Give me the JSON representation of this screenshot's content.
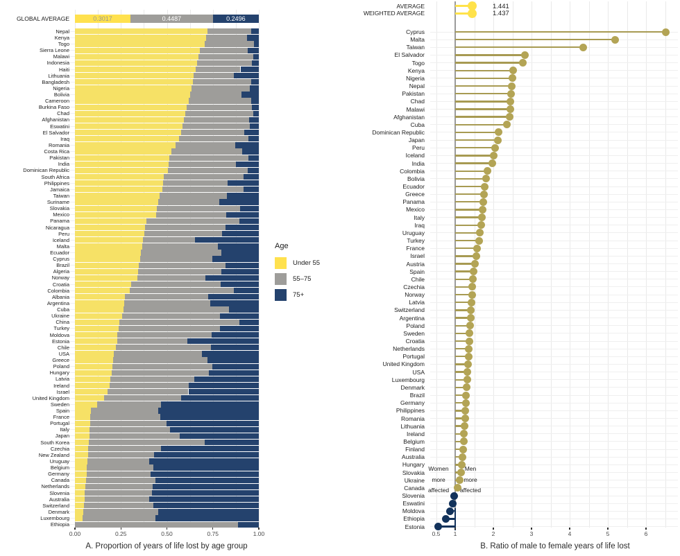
{
  "colors": {
    "under55_bar": "#f6e166",
    "global_under55_bar": "#ffe14e",
    "age5575_bar": "#9e9d9a",
    "age75_bar": "#24426d",
    "ratio_dot_men": "#b3a455",
    "ratio_stem_men": "#a79a52",
    "ratio_dot_women": "#12325b",
    "average_dot": "#ffe24a",
    "reference_line": "#9a9a9a",
    "gridline": "#e9e9e9",
    "row_gridline": "#efefef",
    "axis_text": "#4a4a4a",
    "text": "#1a1a1a",
    "seg_label_yellow_text": "#9a9a8e",
    "seg_label_text": "#ffffff"
  },
  "chart_data": [
    {
      "type": "bar",
      "orientation": "horizontal",
      "stacked": true,
      "title": "A.  Proportion of years of life lost by age group",
      "xlabel": "",
      "ylabel": "",
      "xlim": [
        0,
        1
      ],
      "x_ticks": [
        0,
        0.25,
        0.5,
        0.75,
        1.0
      ],
      "x_tick_labels": [
        "0.00",
        "0.25",
        "0.50",
        "0.75",
        "1.00"
      ],
      "grid": true,
      "legend": {
        "title": "Age",
        "position": "right-middle",
        "entries": [
          "Under 55",
          "55–75",
          "75+"
        ]
      },
      "global_average": {
        "label": "GLOBAL AVERAGE",
        "values": [
          0.3017,
          0.4487,
          0.2496
        ],
        "value_labels": [
          "0.3017",
          "0.4487",
          "0.2496"
        ]
      },
      "row_format": [
        "country",
        "under55",
        "55-75",
        "75plus"
      ],
      "rows": [
        [
          "Nepal",
          0.72,
          0.24,
          0.04
        ],
        [
          "Kenya",
          0.712,
          0.223,
          0.065
        ],
        [
          "Togo",
          0.705,
          0.27,
          0.025
        ],
        [
          "Sierra Leone",
          0.68,
          0.26,
          0.06
        ],
        [
          "Malawi",
          0.673,
          0.297,
          0.03
        ],
        [
          "Indonesia",
          0.664,
          0.298,
          0.038
        ],
        [
          "Haiti",
          0.655,
          0.245,
          0.1
        ],
        [
          "Lithuania",
          0.647,
          0.218,
          0.135
        ],
        [
          "Bangladesh",
          0.64,
          0.318,
          0.042
        ],
        [
          "Nigeria",
          0.633,
          0.319,
          0.048
        ],
        [
          "Bolivia",
          0.625,
          0.28,
          0.095
        ],
        [
          "Cameroon",
          0.617,
          0.341,
          0.042
        ],
        [
          "Burkina Faso",
          0.609,
          0.354,
          0.037
        ],
        [
          "Chad",
          0.601,
          0.367,
          0.032
        ],
        [
          "Afghanistan",
          0.593,
          0.355,
          0.052
        ],
        [
          "Eswatini",
          0.585,
          0.367,
          0.048
        ],
        [
          "El Salvador",
          0.577,
          0.345,
          0.078
        ],
        [
          "Iraq",
          0.565,
          0.377,
          0.058
        ],
        [
          "Romania",
          0.548,
          0.325,
          0.127
        ],
        [
          "Costa Rica",
          0.523,
          0.385,
          0.092
        ],
        [
          "Pakistan",
          0.513,
          0.431,
          0.056
        ],
        [
          "India",
          0.508,
          0.369,
          0.123
        ],
        [
          "Dominican Republic",
          0.504,
          0.434,
          0.062
        ],
        [
          "South Africa",
          0.482,
          0.436,
          0.082
        ],
        [
          "Philippines",
          0.478,
          0.352,
          0.17
        ],
        [
          "Jamaica",
          0.474,
          0.443,
          0.083
        ],
        [
          "Taiwan",
          0.462,
          0.366,
          0.172
        ],
        [
          "Suriname",
          0.452,
          0.334,
          0.214
        ],
        [
          "Slovakia",
          0.447,
          0.451,
          0.102
        ],
        [
          "Mexico",
          0.442,
          0.381,
          0.177
        ],
        [
          "Panama",
          0.387,
          0.506,
          0.107
        ],
        [
          "Nicaragua",
          0.382,
          0.436,
          0.182
        ],
        [
          "Peru",
          0.377,
          0.423,
          0.2
        ],
        [
          "Iceland",
          0.371,
          0.281,
          0.348
        ],
        [
          "Malta",
          0.366,
          0.411,
          0.223
        ],
        [
          "Ecuador",
          0.36,
          0.438,
          0.202
        ],
        [
          "Cyprus",
          0.354,
          0.394,
          0.252
        ],
        [
          "Brazil",
          0.349,
          0.469,
          0.182
        ],
        [
          "Algeria",
          0.344,
          0.453,
          0.203
        ],
        [
          "Norway",
          0.338,
          0.37,
          0.292
        ],
        [
          "Croatia",
          0.306,
          0.487,
          0.207
        ],
        [
          "Colombia",
          0.299,
          0.566,
          0.135
        ],
        [
          "Albania",
          0.272,
          0.452,
          0.276
        ],
        [
          "Argentina",
          0.268,
          0.468,
          0.264
        ],
        [
          "Cuba",
          0.263,
          0.575,
          0.162
        ],
        [
          "Ukraine",
          0.258,
          0.53,
          0.212
        ],
        [
          "China",
          0.241,
          0.652,
          0.107
        ],
        [
          "Turkey",
          0.236,
          0.552,
          0.212
        ],
        [
          "Moldova",
          0.231,
          0.513,
          0.256
        ],
        [
          "Estonia",
          0.229,
          0.384,
          0.387
        ],
        [
          "Chile",
          0.224,
          0.514,
          0.262
        ],
        [
          "USA",
          0.212,
          0.478,
          0.31
        ],
        [
          "Greece",
          0.208,
          0.512,
          0.28
        ],
        [
          "Poland",
          0.204,
          0.544,
          0.252
        ],
        [
          "Hungary",
          0.199,
          0.529,
          0.272
        ],
        [
          "Latvia",
          0.194,
          0.454,
          0.352
        ],
        [
          "Ireland",
          0.188,
          0.432,
          0.38
        ],
        [
          "Israel",
          0.176,
          0.441,
          0.383
        ],
        [
          "United Kingdom",
          0.158,
          0.42,
          0.422
        ],
        [
          "Sweden",
          0.121,
          0.347,
          0.532
        ],
        [
          "Spain",
          0.086,
          0.366,
          0.548
        ],
        [
          "France",
          0.084,
          0.381,
          0.535
        ],
        [
          "Portugal",
          0.082,
          0.416,
          0.502
        ],
        [
          "Italy",
          0.08,
          0.438,
          0.482
        ],
        [
          "Japan",
          0.078,
          0.493,
          0.429
        ],
        [
          "South Korea",
          0.076,
          0.628,
          0.296
        ],
        [
          "Czechia",
          0.073,
          0.395,
          0.532
        ],
        [
          "New Zealand",
          0.07,
          0.36,
          0.57
        ],
        [
          "Uruguay",
          0.068,
          0.335,
          0.597
        ],
        [
          "Belgium",
          0.066,
          0.362,
          0.572
        ],
        [
          "Germany",
          0.063,
          0.35,
          0.587
        ],
        [
          "Canada",
          0.06,
          0.378,
          0.562
        ],
        [
          "Netherlands",
          0.057,
          0.365,
          0.578
        ],
        [
          "Slovenia",
          0.054,
          0.364,
          0.582
        ],
        [
          "Australia",
          0.051,
          0.351,
          0.598
        ],
        [
          "Switzerland",
          0.049,
          0.379,
          0.572
        ],
        [
          "Denmark",
          0.046,
          0.406,
          0.548
        ],
        [
          "Luxembourg",
          0.043,
          0.395,
          0.562
        ],
        [
          "Ethiopia",
          0.0,
          0.887,
          0.113
        ]
      ]
    },
    {
      "type": "scatter",
      "subtype": "lollipop",
      "title": "B.  Ratio of male to female years of life lost",
      "xlabel": "",
      "ylabel": "",
      "xlim": [
        0.45,
        6.85
      ],
      "reference_x": 1,
      "x_ticks": [
        0.5,
        1,
        2,
        3,
        4,
        5,
        6
      ],
      "x_tick_labels": [
        "0.5",
        "1",
        "2",
        "3",
        "4",
        "5",
        "6"
      ],
      "grid": true,
      "averages": [
        {
          "label": "AVERAGE",
          "value": 1.441,
          "value_label": "1.441"
        },
        {
          "label": "WEIGHTED AVERAGE",
          "value": 1.437,
          "value_label": "1.437"
        }
      ],
      "annotation_left": [
        "Women",
        "more",
        "affected"
      ],
      "annotation_right": [
        "Men",
        "more",
        "affected"
      ],
      "row_format": [
        "country",
        "male_to_female_ratio"
      ],
      "rows": [
        [
          "Cyprus",
          6.52
        ],
        [
          "Malta",
          5.19
        ],
        [
          "Taiwan",
          4.35
        ],
        [
          "El Salvador",
          2.83
        ],
        [
          "Togo",
          2.78
        ],
        [
          "Kenya",
          2.52
        ],
        [
          "Nigeria",
          2.5
        ],
        [
          "Nepal",
          2.48
        ],
        [
          "Pakistan",
          2.47
        ],
        [
          "Chad",
          2.45
        ],
        [
          "Malawi",
          2.44
        ],
        [
          "Afghanistan",
          2.42
        ],
        [
          "Cuba",
          2.36
        ],
        [
          "Dominican Republic",
          2.14
        ],
        [
          "Japan",
          2.12
        ],
        [
          "Peru",
          2.04
        ],
        [
          "Iceland",
          2.0
        ],
        [
          "India",
          1.97
        ],
        [
          "Colombia",
          1.85
        ],
        [
          "Bolivia",
          1.81
        ],
        [
          "Ecuador",
          1.78
        ],
        [
          "Greece",
          1.76
        ],
        [
          "Panama",
          1.74
        ],
        [
          "Mexico",
          1.72
        ],
        [
          "Italy",
          1.7
        ],
        [
          "Iraq",
          1.68
        ],
        [
          "Uruguay",
          1.65
        ],
        [
          "Turkey",
          1.63
        ],
        [
          "France",
          1.58
        ],
        [
          "Israel",
          1.55
        ],
        [
          "Austria",
          1.52
        ],
        [
          "Spain",
          1.49
        ],
        [
          "Chile",
          1.47
        ],
        [
          "Czechia",
          1.45
        ],
        [
          "Norway",
          1.44
        ],
        [
          "Latvia",
          1.42
        ],
        [
          "Switzerland",
          1.41
        ],
        [
          "Argentina",
          1.4
        ],
        [
          "Poland",
          1.39
        ],
        [
          "Sweden",
          1.38
        ],
        [
          "Croatia",
          1.37
        ],
        [
          "Netherlands",
          1.36
        ],
        [
          "Portugal",
          1.35
        ],
        [
          "United Kingdom",
          1.34
        ],
        [
          "USA",
          1.32
        ],
        [
          "Luxembourg",
          1.31
        ],
        [
          "Denmark",
          1.3
        ],
        [
          "Brazil",
          1.29
        ],
        [
          "Germany",
          1.28
        ],
        [
          "Philippines",
          1.27
        ],
        [
          "Romania",
          1.26
        ],
        [
          "Lithuania",
          1.25
        ],
        [
          "Ireland",
          1.23
        ],
        [
          "Belgium",
          1.22
        ],
        [
          "Finland",
          1.21
        ],
        [
          "Australia",
          1.19
        ],
        [
          "Hungary",
          1.17
        ],
        [
          "Slovakia",
          1.15
        ],
        [
          "Ukraine",
          1.12
        ],
        [
          "Canada",
          1.07
        ],
        [
          "Slovenia",
          0.97
        ],
        [
          "Eswatini",
          0.94
        ],
        [
          "Moldova",
          0.86
        ],
        [
          "Ethiopia",
          0.76
        ],
        [
          "Estonia",
          0.55
        ]
      ]
    }
  ]
}
